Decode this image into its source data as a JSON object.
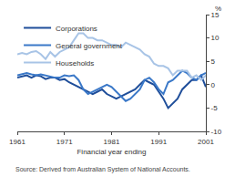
{
  "chart_data": {
    "type": "line",
    "xlabel": "Financial year ending",
    "ylabel": "%",
    "source": "Source: Derived from Australian System of National Accounts.",
    "x": [
      1961,
      1962,
      1963,
      1964,
      1965,
      1966,
      1967,
      1968,
      1969,
      1970,
      1971,
      1972,
      1973,
      1974,
      1975,
      1976,
      1977,
      1978,
      1979,
      1980,
      1981,
      1982,
      1983,
      1984,
      1985,
      1986,
      1987,
      1988,
      1989,
      1990,
      1991,
      1992,
      1993,
      1994,
      1995,
      1996,
      1997,
      1998,
      1999,
      2000,
      2001
    ],
    "series": [
      {
        "name": "Corporations",
        "color": "#1f4e9a",
        "values": [
          1.5,
          1.8,
          2.0,
          1.5,
          2.0,
          1.8,
          1.2,
          1.5,
          1.5,
          1.0,
          1.2,
          0.5,
          0.0,
          -0.5,
          -1.0,
          -1.5,
          -2.0,
          -1.5,
          -1.0,
          -2.0,
          -2.5,
          -3.0,
          -2.5,
          -2.0,
          -1.5,
          -1.0,
          0.0,
          1.0,
          0.5,
          0.0,
          -1.5,
          -3.0,
          -5.0,
          -4.0,
          -3.0,
          -1.0,
          0.0,
          1.0,
          1.0,
          2.0,
          -0.5
        ]
      },
      {
        "name": "General government",
        "color": "#3a78c8",
        "values": [
          2.0,
          2.2,
          2.5,
          2.2,
          2.0,
          2.2,
          2.0,
          1.8,
          1.5,
          1.5,
          2.0,
          1.8,
          2.0,
          1.0,
          -1.0,
          -2.0,
          -1.5,
          -1.0,
          -0.5,
          0.0,
          -0.5,
          -1.5,
          -2.5,
          -3.5,
          -3.0,
          -2.0,
          -1.0,
          1.0,
          1.5,
          0.5,
          -1.0,
          -2.0,
          0.5,
          1.0,
          2.0,
          3.0,
          2.5,
          1.5,
          1.0,
          2.0,
          2.5
        ]
      },
      {
        "name": "Households",
        "color": "#a8c4e6",
        "values": [
          6.5,
          6.8,
          6.5,
          7.0,
          7.2,
          6.5,
          5.5,
          7.0,
          6.0,
          7.0,
          7.5,
          8.0,
          9.5,
          11.0,
          11.0,
          10.0,
          10.0,
          9.5,
          9.5,
          9.0,
          8.5,
          8.5,
          8.0,
          9.0,
          8.5,
          8.0,
          7.5,
          6.5,
          6.0,
          4.5,
          4.0,
          4.0,
          3.5,
          2.0,
          3.0,
          3.0,
          3.0,
          1.5,
          2.0,
          1.0,
          2.0
        ]
      }
    ],
    "xlim": [
      1961,
      2001
    ],
    "xticks": [
      1961,
      1971,
      1981,
      1991,
      2001
    ],
    "ylim": [
      -10,
      15
    ],
    "yticks": [
      -10,
      -5,
      0,
      5,
      10,
      15
    ],
    "legend": "top-left",
    "grid": false
  }
}
